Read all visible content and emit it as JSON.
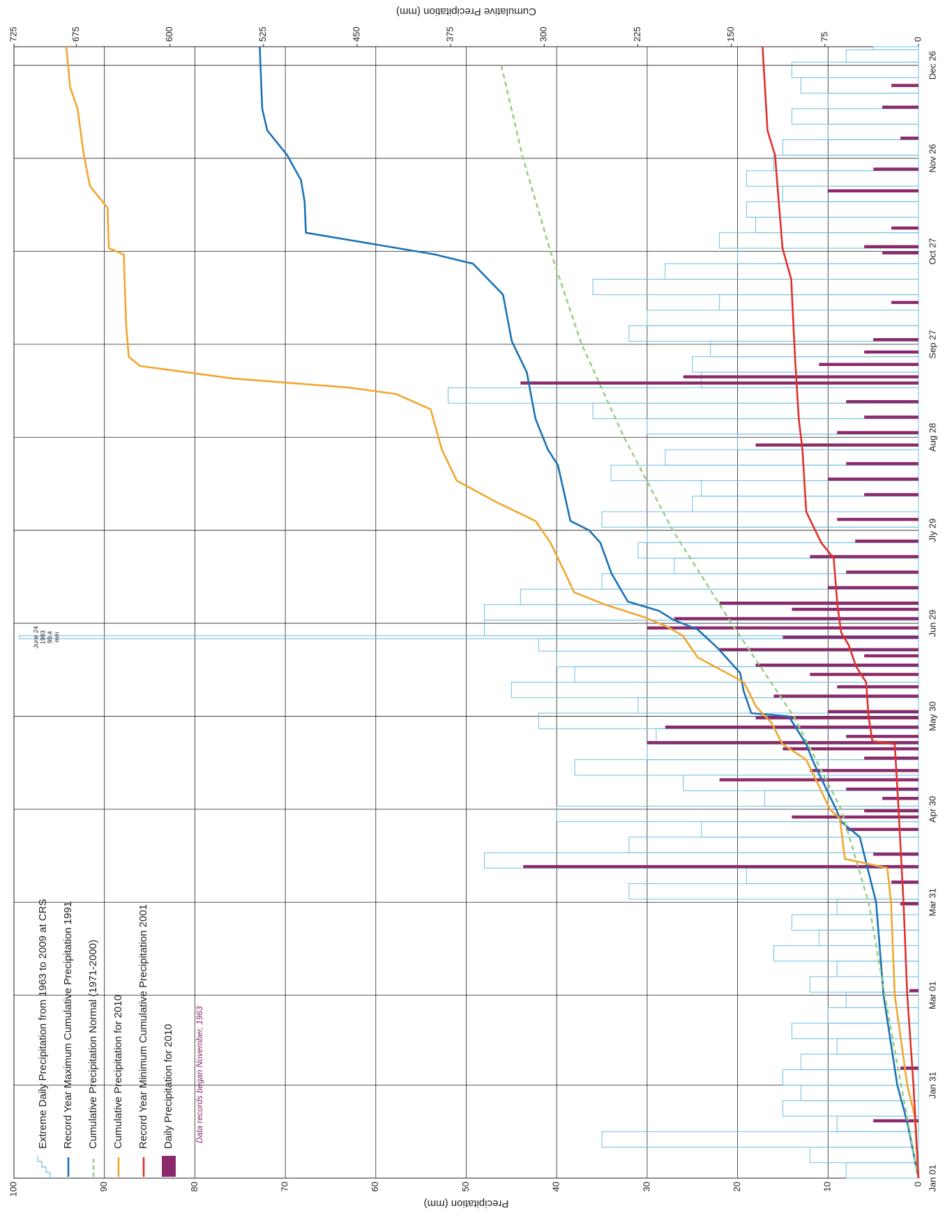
{
  "chart_data": {
    "type": "line",
    "y_label": "Precipitation (mm)",
    "y2_label": "Cumulative Precipitation (mm)",
    "note": "Data records began November, 1963",
    "annotation": {
      "lines": [
        "June 24",
        "1983",
        "99.4",
        "mm"
      ]
    },
    "grid": true,
    "xlim": [
      0,
      365
    ],
    "xticks": [
      {
        "value": 0,
        "label": "Jan 01"
      },
      {
        "value": 30,
        "label": "Jan 31"
      },
      {
        "value": 59,
        "label": "Mar 01"
      },
      {
        "value": 89,
        "label": "Mar 31"
      },
      {
        "value": 119,
        "label": "Apr 30"
      },
      {
        "value": 149,
        "label": "May 30"
      },
      {
        "value": 179,
        "label": "Jun 29"
      },
      {
        "value": 209,
        "label": "Jly 29"
      },
      {
        "value": 239,
        "label": "Aug 28"
      },
      {
        "value": 269,
        "label": "Sep 27"
      },
      {
        "value": 299,
        "label": "Oct 27"
      },
      {
        "value": 329,
        "label": "Nov 26"
      },
      {
        "value": 359,
        "label": "Dec 26"
      }
    ],
    "ylim": [
      0,
      100
    ],
    "yticks": [
      0,
      10,
      20,
      30,
      40,
      50,
      60,
      70,
      80,
      90,
      100
    ],
    "y2lim": [
      0,
      725
    ],
    "y2ticks": [
      0,
      75,
      150,
      225,
      300,
      375,
      450,
      525,
      600,
      675,
      725
    ],
    "series": [
      {
        "name": "Extreme Daily Precipitation from 1963 to 2009 at CRS",
        "type": "outline_bar",
        "color": "#6fbfe0",
        "axis": "y",
        "x": [
          0,
          5,
          10,
          15,
          20,
          25,
          30,
          35,
          40,
          45,
          50,
          55,
          60,
          65,
          70,
          75,
          80,
          85,
          90,
          95,
          100,
          105,
          110,
          115,
          120,
          125,
          130,
          135,
          140,
          145,
          150,
          155,
          160,
          165,
          170,
          174,
          175,
          180,
          185,
          190,
          195,
          200,
          205,
          210,
          215,
          220,
          225,
          230,
          235,
          240,
          245,
          250,
          255,
          260,
          265,
          270,
          275,
          280,
          285,
          290,
          295,
          300,
          305,
          310,
          315,
          320,
          325,
          330,
          335,
          340,
          345,
          350,
          355,
          360,
          364
        ],
        "values": [
          8,
          12,
          35,
          9,
          15,
          13,
          15,
          13,
          9,
          14,
          10,
          8,
          12,
          9,
          16,
          11,
          14,
          9,
          32,
          19,
          48,
          32,
          24,
          40,
          17,
          26,
          38,
          30,
          29,
          42,
          31,
          45,
          38,
          40,
          42,
          99.4,
          48,
          48,
          44,
          35,
          27,
          31,
          30,
          35,
          25,
          24,
          34,
          28,
          20,
          30,
          36,
          52,
          24,
          25,
          23,
          32,
          30,
          22,
          36,
          28,
          20,
          22,
          18,
          19,
          15,
          19,
          16,
          15,
          10,
          14,
          10,
          13,
          14,
          8,
          5
        ]
      },
      {
        "name": "Record Year Maximum Cumulative Precipitation 1991",
        "type": "line",
        "color": "#1a72b5",
        "axis": "y2",
        "x": [
          0,
          18,
          30,
          59,
          89,
          110,
          115,
          119,
          134,
          140,
          149,
          150,
          157,
          163,
          171,
          177,
          180,
          183,
          186,
          195,
          205,
          209,
          212,
          230,
          235,
          245,
          260,
          270,
          285,
          295,
          298,
          301,
          305,
          315,
          322,
          330,
          338,
          345,
          365
        ],
        "values": [
          0,
          9,
          17,
          28,
          34,
          47,
          62,
          66,
          84,
          90,
          104,
          134,
          140,
          143,
          161,
          177,
          196,
          208,
          233,
          246,
          255,
          264,
          279,
          289,
          297,
          307,
          314,
          326,
          333,
          357,
          388,
          432,
          491,
          492,
          495,
          506,
          522,
          526,
          528
        ]
      },
      {
        "name": "Cumulative Precipitation Normal (1971-2000)",
        "type": "line",
        "dashed": true,
        "color": "#9acf85",
        "axis": "y2",
        "x": [
          0,
          30,
          59,
          89,
          119,
          149,
          179,
          209,
          239,
          269,
          299,
          329,
          360
        ],
        "values": [
          0,
          14,
          27,
          40,
          62,
          100,
          150,
          197,
          236,
          270,
          295,
          317,
          335
        ]
      },
      {
        "name": "Cumulative Precipitation for 2010",
        "type": "line",
        "color": "#f2a62e",
        "axis": "y2",
        "x": [
          0,
          20,
          30,
          59,
          89,
          100,
          103,
          116,
          119,
          130,
          135,
          140,
          147,
          152,
          160,
          168,
          175,
          178,
          181,
          185,
          189,
          195,
          205,
          212,
          218,
          225,
          235,
          248,
          253,
          255,
          258,
          262,
          265,
          275,
          298,
          300,
          313,
          320,
          330,
          345,
          352,
          365
        ],
        "values": [
          0,
          3,
          9,
          19,
          22,
          25,
          59,
          63,
          71,
          84,
          90,
          109,
          118,
          130,
          140,
          177,
          189,
          202,
          220,
          251,
          276,
          283,
          295,
          307,
          338,
          370,
          382,
          391,
          419,
          456,
          550,
          624,
          633,
          635,
          637,
          649,
          650,
          664,
          669,
          674,
          680,
          683
        ]
      },
      {
        "name": "Record Year Minimum Cumulative Precipitation 2001",
        "type": "line",
        "color": "#e0302b",
        "axis": "y2",
        "x": [
          0,
          30,
          59,
          89,
          119,
          140,
          141,
          149,
          160,
          165,
          172,
          176,
          185,
          200,
          205,
          215,
          235,
          245,
          265,
          290,
          300,
          330,
          338,
          365
        ],
        "values": [
          0,
          4,
          9,
          12,
          16,
          19,
          37,
          40,
          42,
          50,
          56,
          62,
          65,
          68,
          78,
          90,
          93,
          96,
          99,
          102,
          109,
          115,
          121,
          125
        ]
      },
      {
        "name": "Daily Precipitation for 2010",
        "type": "bar",
        "color": "#8b2a6a",
        "axis": "y",
        "x": [
          18,
          35,
          60,
          88,
          95,
          100,
          104,
          112,
          116,
          118,
          122,
          125,
          128,
          131,
          135,
          138,
          140,
          142,
          145,
          148,
          150,
          155,
          158,
          162,
          165,
          168,
          170,
          174,
          177,
          180,
          183,
          185,
          190,
          195,
          200,
          205,
          212,
          220,
          225,
          230,
          236,
          240,
          245,
          250,
          256,
          258,
          262,
          266,
          270,
          282,
          298,
          300,
          306,
          318,
          325,
          335,
          345,
          352
        ],
        "values": [
          5,
          2,
          1,
          2,
          3,
          43.7,
          5,
          8,
          14,
          6,
          4,
          8,
          22,
          12,
          6,
          15,
          30,
          8,
          28,
          18,
          10,
          16,
          9,
          12,
          18,
          6,
          22,
          15,
          30,
          27,
          14,
          22,
          10,
          8,
          12,
          7,
          9,
          6,
          10,
          8,
          18,
          9,
          6,
          8,
          44,
          26,
          11,
          6,
          5,
          3,
          4,
          6,
          3,
          10,
          5,
          2,
          4,
          3
        ]
      }
    ]
  }
}
